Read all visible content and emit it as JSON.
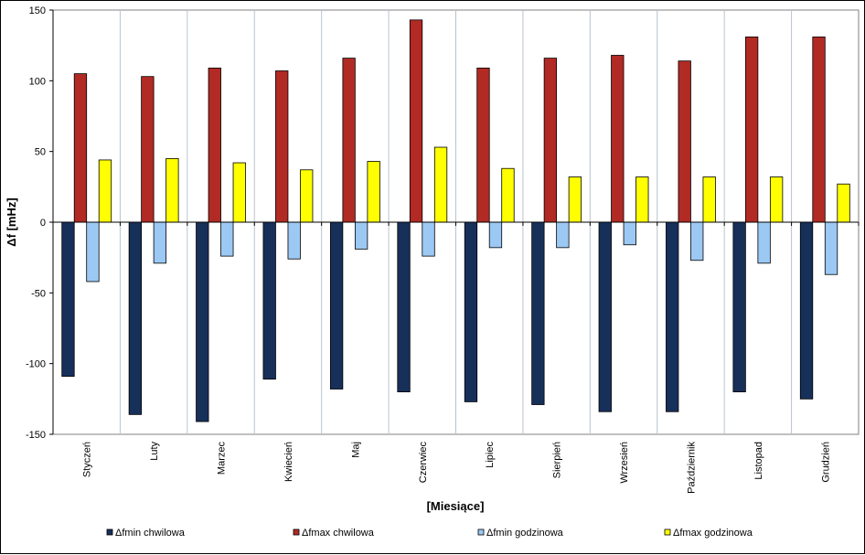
{
  "chart_data": {
    "type": "bar",
    "title": "",
    "xlabel": "[Miesiące]",
    "ylabel": "Δf [mHz]",
    "ylim": [
      -150,
      150
    ],
    "yticks": [
      -150,
      -100,
      -50,
      0,
      50,
      100,
      150
    ],
    "grid": "vertical",
    "legend_position": "bottom",
    "categories": [
      "Styczeń",
      "Luty",
      "Marzec",
      "Kwiecień",
      "Maj",
      "Czerwiec",
      "Lipiec",
      "Sierpień",
      "Wrzesień",
      "Październik",
      "Listopad",
      "Grudzień"
    ],
    "series": [
      {
        "name": "Δfmin chwilowa",
        "color": "#17305a",
        "values": [
          -109,
          -136,
          -141,
          -111,
          -118,
          -120,
          -127,
          -129,
          -134,
          -134,
          -120,
          -125
        ]
      },
      {
        "name": "Δfmax chwilowa",
        "color": "#b22a24",
        "values": [
          105,
          103,
          109,
          107,
          116,
          143,
          109,
          116,
          118,
          114,
          131,
          131
        ]
      },
      {
        "name": "Δfmin godzinowa",
        "color": "#9cc8f4",
        "values": [
          -42,
          -29,
          -24,
          -26,
          -19,
          -24,
          -18,
          -18,
          -16,
          -27,
          -29,
          -37
        ]
      },
      {
        "name": "Δfmax godzinowa",
        "color": "#ffff00",
        "values": [
          44,
          45,
          42,
          37,
          43,
          53,
          38,
          32,
          32,
          32,
          32,
          27
        ]
      }
    ]
  }
}
